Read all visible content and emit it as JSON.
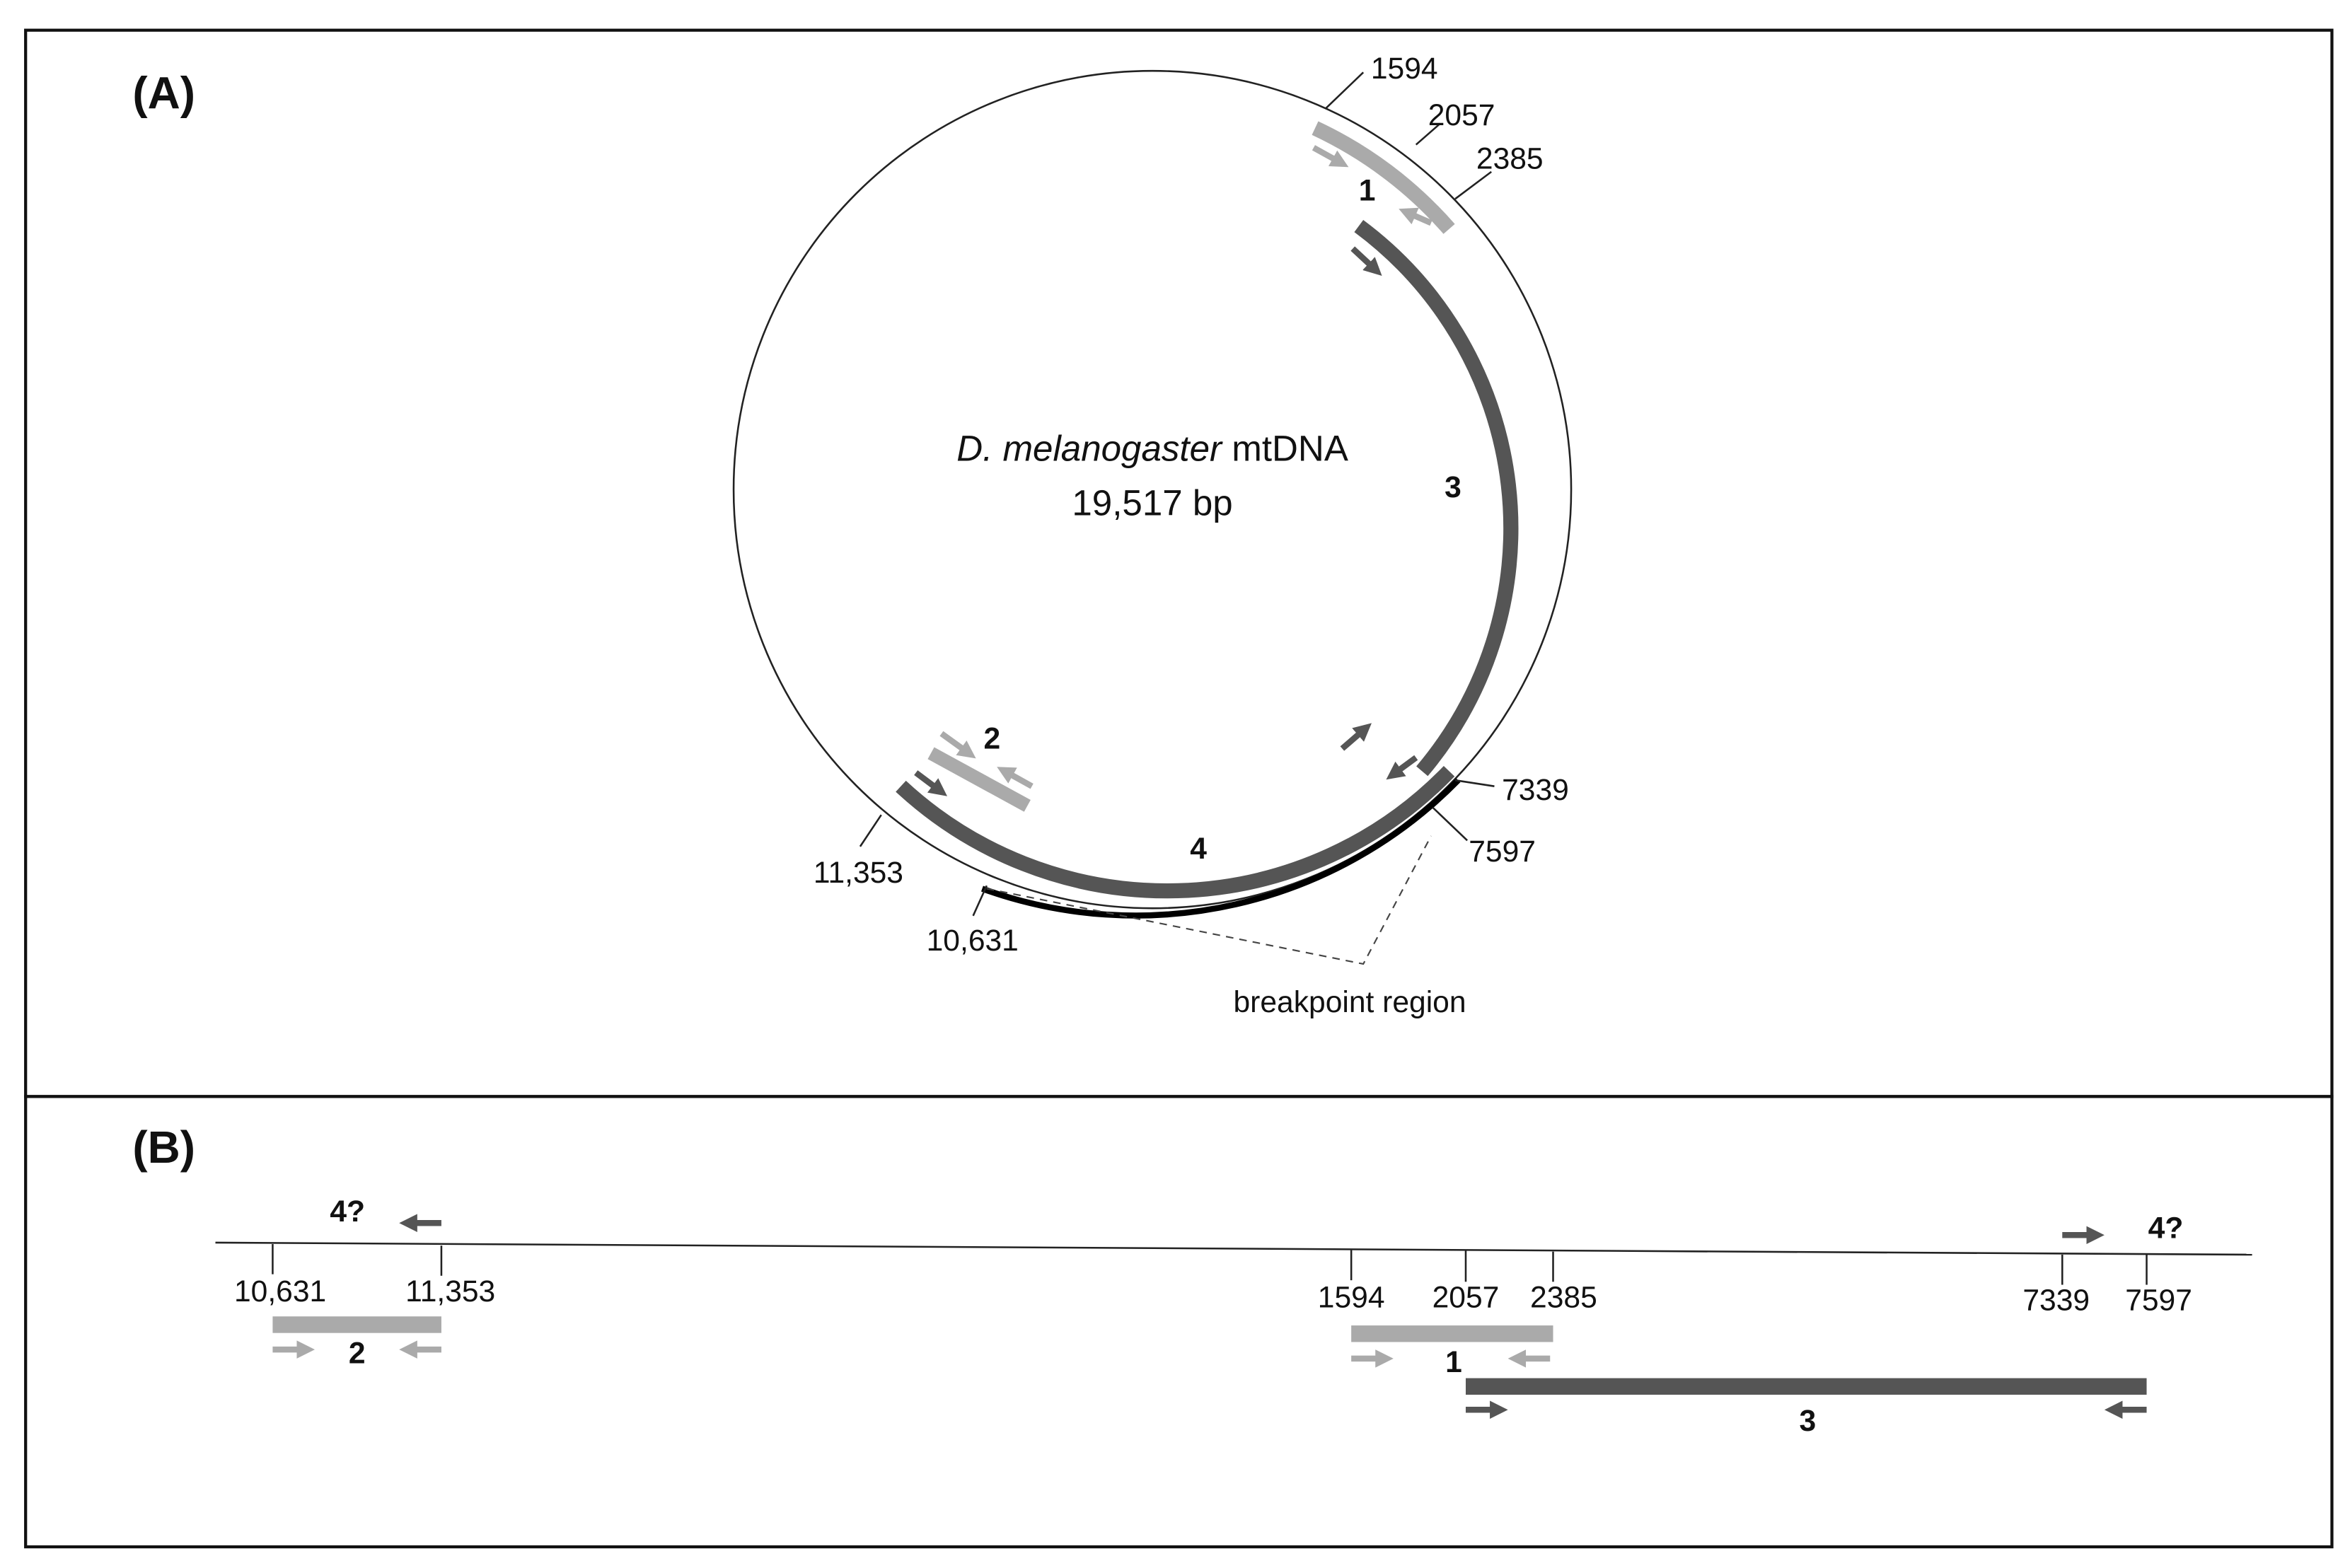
{
  "panel_a": {
    "label": "(A)",
    "title_italic": "D. melanogaster",
    "title_rest": "mtDNA",
    "size": "19,517 bp",
    "positions": [
      "1594",
      "2057",
      "2385",
      "7339",
      "7597",
      "11,353",
      "10,631"
    ],
    "fragments": [
      "1",
      "2",
      "3",
      "4"
    ],
    "breakpoint": "breakpoint region"
  },
  "panel_b": {
    "label": "(B)",
    "unknown": [
      "4?",
      "4?"
    ],
    "positions": [
      "10,631",
      "11,353",
      "1594",
      "2057",
      "2385",
      "7339",
      "7597"
    ],
    "fragments": [
      "2",
      "1",
      "3"
    ]
  }
}
